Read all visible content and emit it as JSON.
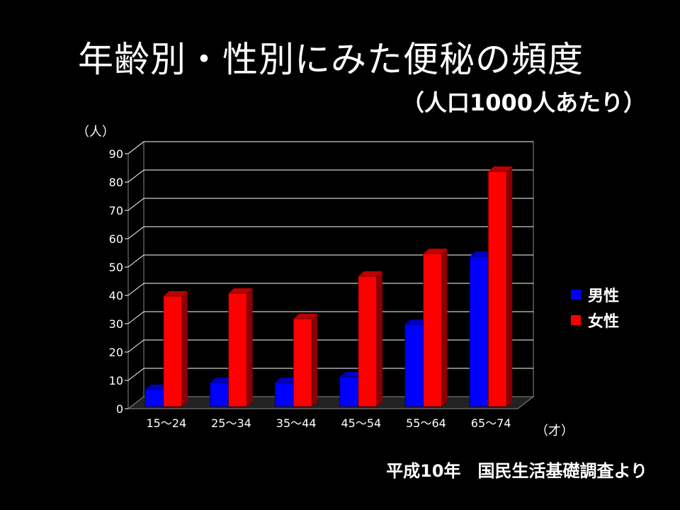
{
  "title": "年齢別・性別にみた便秘の頻度",
  "subtitle": "（人口1000人あたり）",
  "source": "平成10年　国民生活基礎調査より",
  "chart_data": {
    "type": "bar",
    "ylabel": "（人）",
    "xlabel": "（才）",
    "ylim": [
      0,
      90
    ],
    "yticks": [
      0,
      10,
      20,
      30,
      40,
      50,
      60,
      70,
      80,
      90
    ],
    "categories": [
      "15～24",
      "25～34",
      "35～44",
      "45～54",
      "55～64",
      "65～74"
    ],
    "series": [
      {
        "name": "男性",
        "color": "#0000ff",
        "values": [
          6,
          8.5,
          8.5,
          10.5,
          29,
          53
        ]
      },
      {
        "name": "女性",
        "color": "#ff0000",
        "values": [
          39,
          40,
          31,
          46,
          54,
          83
        ]
      }
    ],
    "grid": true,
    "legend": "right"
  }
}
